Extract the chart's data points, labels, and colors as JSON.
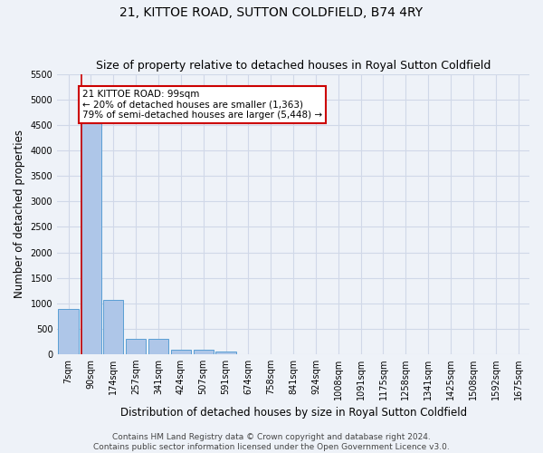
{
  "title": "21, KITTOE ROAD, SUTTON COLDFIELD, B74 4RY",
  "subtitle": "Size of property relative to detached houses in Royal Sutton Coldfield",
  "xlabel": "Distribution of detached houses by size in Royal Sutton Coldfield",
  "ylabel": "Number of detached properties",
  "footer1": "Contains HM Land Registry data © Crown copyright and database right 2024.",
  "footer2": "Contains public sector information licensed under the Open Government Licence v3.0.",
  "categories": [
    "7sqm",
    "90sqm",
    "174sqm",
    "257sqm",
    "341sqm",
    "424sqm",
    "507sqm",
    "591sqm",
    "674sqm",
    "758sqm",
    "841sqm",
    "924sqm",
    "1008sqm",
    "1091sqm",
    "1175sqm",
    "1258sqm",
    "1341sqm",
    "1425sqm",
    "1508sqm",
    "1592sqm",
    "1675sqm"
  ],
  "values": [
    880,
    4560,
    1060,
    295,
    295,
    90,
    90,
    55,
    0,
    0,
    0,
    0,
    0,
    0,
    0,
    0,
    0,
    0,
    0,
    0,
    0
  ],
  "bar_color": "#aec6e8",
  "bar_edge_color": "#5a9fd4",
  "grid_color": "#d0d8e8",
  "background_color": "#eef2f8",
  "annotation_line1": "21 KITTOE ROAD: 99sqm",
  "annotation_line2": "← 20% of detached houses are smaller (1,363)",
  "annotation_line3": "79% of semi-detached houses are larger (5,448) →",
  "annotation_box_color": "#ffffff",
  "annotation_box_edge_color": "#cc0000",
  "property_line_color": "#cc0000",
  "ylim": [
    0,
    5500
  ],
  "yticks": [
    0,
    500,
    1000,
    1500,
    2000,
    2500,
    3000,
    3500,
    4000,
    4500,
    5000,
    5500
  ],
  "title_fontsize": 10,
  "subtitle_fontsize": 9,
  "label_fontsize": 8.5,
  "tick_fontsize": 7,
  "footer_fontsize": 6.5,
  "annot_fontsize": 7.5
}
